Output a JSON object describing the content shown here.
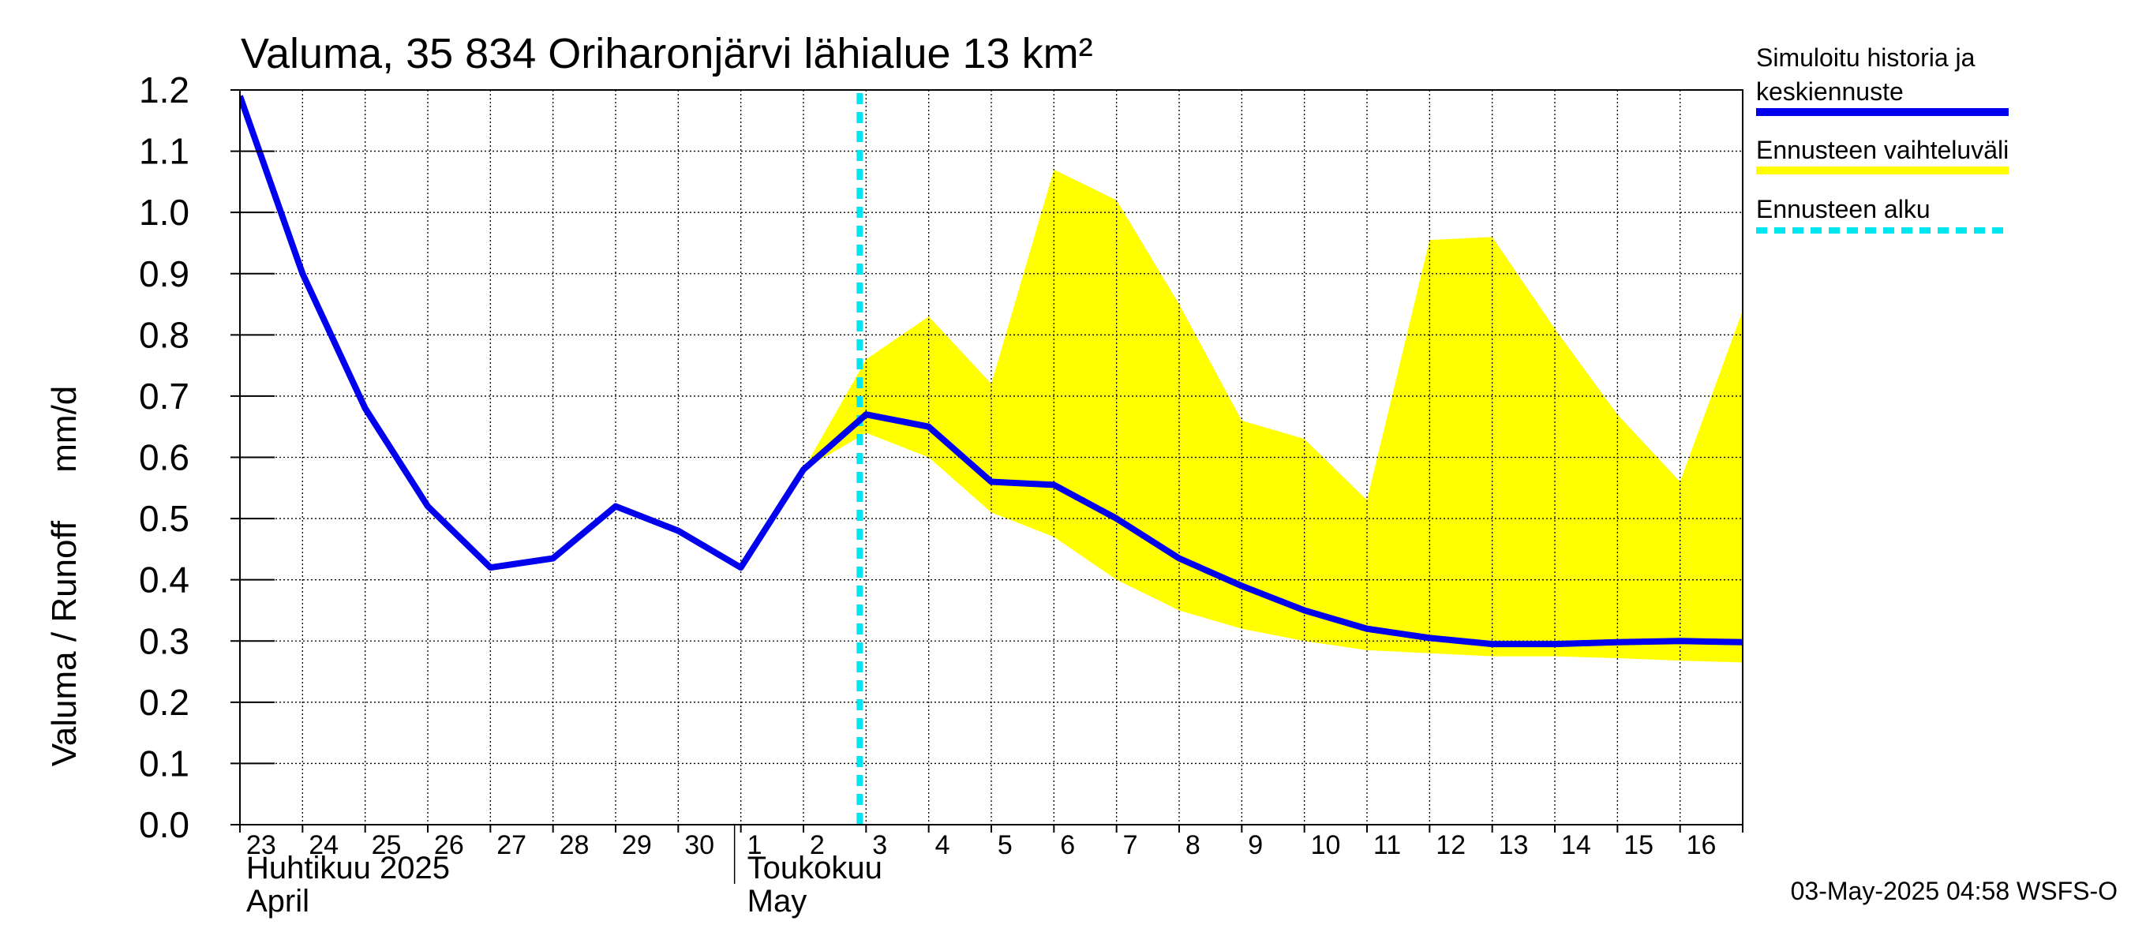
{
  "chart_data": {
    "type": "line",
    "title": "Valuma, 35 834 Oriharonjärvi lähialue 13 km²",
    "ylabel": "Valuma / Runoff     mm/d",
    "ylim": [
      0,
      1.2
    ],
    "yticks": [
      "0.0",
      "0.1",
      "0.2",
      "0.3",
      "0.4",
      "0.5",
      "0.6",
      "0.7",
      "0.8",
      "0.9",
      "1.0",
      "1.1",
      "1.2"
    ],
    "xlim": [
      "2025-04-23",
      "2025-05-17"
    ],
    "xtick_labels": [
      "23",
      "24",
      "25",
      "26",
      "27",
      "28",
      "29",
      "30",
      "1",
      "2",
      "3",
      "4",
      "5",
      "6",
      "7",
      "8",
      "9",
      "10",
      "11",
      "12",
      "13",
      "14",
      "15",
      "16"
    ],
    "months": [
      {
        "line1": "Huhtikuu  2025",
        "line2": "April",
        "start": "2025-04-23"
      },
      {
        "line1": "Toukokuu",
        "line2": "May",
        "start": "2025-05-01"
      }
    ],
    "forecast_start": "2025-05-03",
    "series": [
      {
        "name": "Simuloitu historia ja keskiennuste",
        "color": "#0000ee",
        "x": [
          "2025-04-23",
          "2025-04-24",
          "2025-04-25",
          "2025-04-26",
          "2025-04-27",
          "2025-04-28",
          "2025-04-29",
          "2025-04-30",
          "2025-05-01",
          "2025-05-02",
          "2025-05-03",
          "2025-05-04",
          "2025-05-05",
          "2025-05-06",
          "2025-05-07",
          "2025-05-08",
          "2025-05-09",
          "2025-05-10",
          "2025-05-11",
          "2025-05-12",
          "2025-05-13",
          "2025-05-14",
          "2025-05-15",
          "2025-05-16",
          "2025-05-17"
        ],
        "values": [
          1.19,
          0.9,
          0.68,
          0.52,
          0.42,
          0.435,
          0.52,
          0.48,
          0.42,
          0.58,
          0.67,
          0.65,
          0.56,
          0.555,
          0.5,
          0.435,
          0.39,
          0.35,
          0.32,
          0.305,
          0.295,
          0.295,
          0.298,
          0.3,
          0.298
        ]
      }
    ],
    "band": {
      "name": "Ennusteen vaihteluväli",
      "color": "#ffff00",
      "x": [
        "2025-05-02",
        "2025-05-03",
        "2025-05-04",
        "2025-05-05",
        "2025-05-06",
        "2025-05-07",
        "2025-05-08",
        "2025-05-09",
        "2025-05-10",
        "2025-05-11",
        "2025-05-12",
        "2025-05-13",
        "2025-05-14",
        "2025-05-15",
        "2025-05-16",
        "2025-05-17"
      ],
      "upper": [
        0.58,
        0.76,
        0.83,
        0.72,
        1.07,
        1.02,
        0.85,
        0.66,
        0.63,
        0.53,
        0.955,
        0.96,
        0.81,
        0.67,
        0.56,
        0.84
      ],
      "lower": [
        0.58,
        0.64,
        0.6,
        0.51,
        0.47,
        0.4,
        0.35,
        0.32,
        0.3,
        0.285,
        0.28,
        0.275,
        0.275,
        0.272,
        0.268,
        0.265
      ]
    },
    "forecast_line": {
      "name": "Ennusteen alku",
      "color": "#00e5ee"
    },
    "grid": true,
    "legend_placement": "right"
  },
  "legend": {
    "items": [
      {
        "line1": "Simuloitu historia ja",
        "line2": "keskiennuste",
        "color": "#0000ee",
        "style": "solid"
      },
      {
        "line1": "Ennusteen vaihteluväli",
        "line2": "",
        "color": "#ffff00",
        "style": "solid"
      },
      {
        "line1": "Ennusteen alku",
        "line2": "",
        "color": "#00e5ee",
        "style": "dashed"
      }
    ]
  },
  "footer": "03-May-2025 04:58 WSFS-O"
}
